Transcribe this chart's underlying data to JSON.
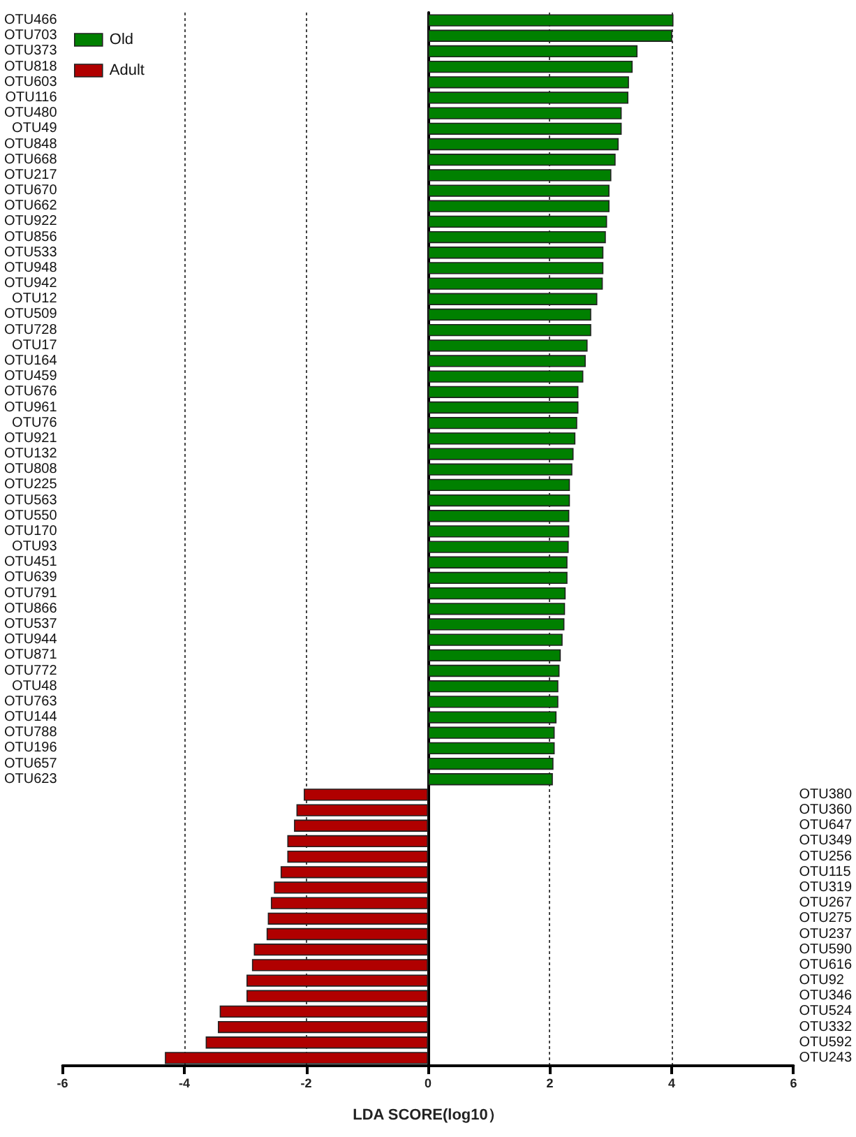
{
  "chart_data": {
    "type": "bar",
    "orientation": "horizontal",
    "xlabel": "LDA SCORE(log10）",
    "categories": [
      "OTU466",
      "OTU703",
      "OTU373",
      "OTU818",
      "OTU603",
      "OTU116",
      "OTU480",
      "OTU49",
      "OTU848",
      "OTU668",
      "OTU217",
      "OTU670",
      "OTU662",
      "OTU922",
      "OTU856",
      "OTU533",
      "OTU948",
      "OTU942",
      "OTU12",
      "OTU509",
      "OTU728",
      "OTU17",
      "OTU164",
      "OTU459",
      "OTU676",
      "OTU961",
      "OTU76",
      "OTU921",
      "OTU132",
      "OTU808",
      "OTU225",
      "OTU563",
      "OTU550",
      "OTU170",
      "OTU93",
      "OTU451",
      "OTU639",
      "OTU791",
      "OTU866",
      "OTU537",
      "OTU944",
      "OTU871",
      "OTU772",
      "OTU48",
      "OTU763",
      "OTU144",
      "OTU788",
      "OTU196",
      "OTU657",
      "OTU623",
      "OTU380",
      "OTU360",
      "OTU647",
      "OTU349",
      "OTU256",
      "OTU115",
      "OTU319",
      "OTU267",
      "OTU275",
      "OTU237",
      "OTU590",
      "OTU616",
      "OTU92",
      "OTU346",
      "OTU524",
      "OTU332",
      "OTU592",
      "OTU243"
    ],
    "series": [
      {
        "name": "Old",
        "color": "#008000",
        "values": [
          4.03,
          4.01,
          3.44,
          3.36,
          3.3,
          3.29,
          3.18,
          3.18,
          3.13,
          3.08,
          3.01,
          2.98,
          2.98,
          2.94,
          2.92,
          2.88,
          2.88,
          2.87,
          2.78,
          2.68,
          2.68,
          2.62,
          2.59,
          2.55,
          2.47,
          2.47,
          2.45,
          2.42,
          2.39,
          2.37,
          2.33,
          2.33,
          2.32,
          2.32,
          2.31,
          2.29,
          2.29,
          2.26,
          2.25,
          2.24,
          2.21,
          2.18,
          2.16,
          2.14,
          2.14,
          2.11,
          2.08,
          2.08,
          2.06,
          2.05,
          null,
          null,
          null,
          null,
          null,
          null,
          null,
          null,
          null,
          null,
          null,
          null,
          null,
          null,
          null,
          null,
          null,
          null
        ]
      },
      {
        "name": "Adult",
        "color": "#b00000",
        "values": [
          null,
          null,
          null,
          null,
          null,
          null,
          null,
          null,
          null,
          null,
          null,
          null,
          null,
          null,
          null,
          null,
          null,
          null,
          null,
          null,
          null,
          null,
          null,
          null,
          null,
          null,
          null,
          null,
          null,
          null,
          null,
          null,
          null,
          null,
          null,
          null,
          null,
          null,
          null,
          null,
          null,
          null,
          null,
          null,
          null,
          null,
          null,
          null,
          null,
          null,
          -2.04,
          -2.16,
          -2.2,
          -2.31,
          -2.31,
          -2.42,
          -2.53,
          -2.58,
          -2.63,
          -2.65,
          -2.86,
          -2.89,
          -2.98,
          -2.98,
          -3.42,
          -3.45,
          -3.65,
          -4.32
        ]
      }
    ],
    "xlim": [
      -6,
      6
    ],
    "xticks": [
      -6,
      -4,
      -2,
      0,
      2,
      4,
      6
    ],
    "grid": "x",
    "legend": "top left"
  }
}
